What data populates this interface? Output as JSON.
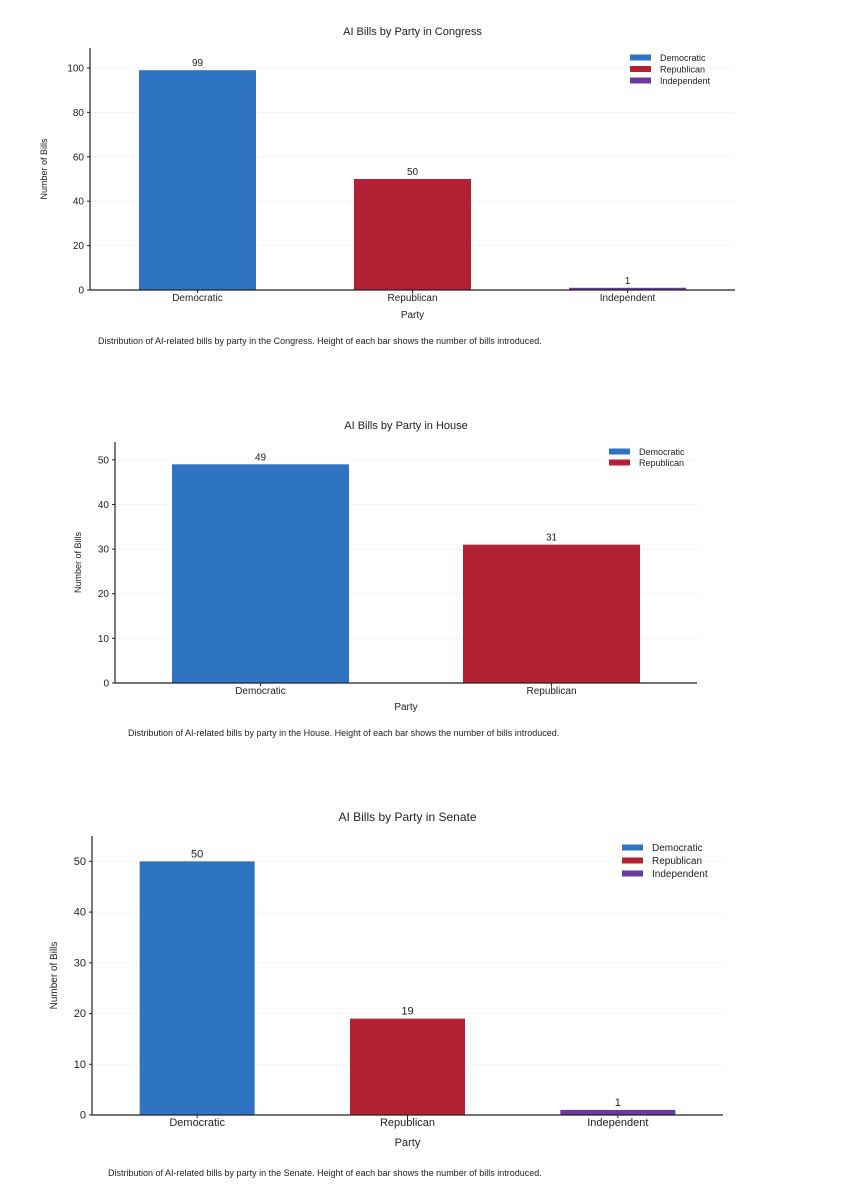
{
  "charts": [
    {
      "caption": "Distribution of AI-related bills by party in the Congress. Height of each bar shows the number of bills introduced.",
      "chart_data": {
        "type": "bar",
        "title": "AI Bills by Party in Congress",
        "xlabel": "Party",
        "ylabel": "Number of Bills",
        "categories": [
          "Democratic",
          "Republican",
          "Independent"
        ],
        "values": [
          99,
          50,
          1
        ],
        "colors": [
          "#2e74c3",
          "#b22234",
          "#6a3aa0"
        ],
        "ylim": [
          0,
          109
        ],
        "yticks": [
          "0",
          "20",
          "40",
          "60",
          "80",
          "100"
        ],
        "legend": [
          "Democratic",
          "Republican",
          "Independent"
        ],
        "legend_position": "top-right",
        "grid": true
      }
    },
    {
      "caption": "Distribution of AI-related bills by party in the House. Height of each bar shows the number of bills introduced.",
      "chart_data": {
        "type": "bar",
        "title": "AI Bills by Party in House",
        "xlabel": "Party",
        "ylabel": "Number of Bills",
        "categories": [
          "Democratic",
          "Republican"
        ],
        "values": [
          49,
          31
        ],
        "colors": [
          "#2e74c3",
          "#b22234"
        ],
        "ylim": [
          0,
          54
        ],
        "yticks": [
          "0",
          "10",
          "20",
          "30",
          "40",
          "50"
        ],
        "legend": [
          "Democratic",
          "Republican"
        ],
        "legend_position": "top-right",
        "grid": true
      }
    },
    {
      "caption": "Distribution of AI-related bills by party in the Senate. Height of each bar shows the number of bills introduced.",
      "chart_data": {
        "type": "bar",
        "title": "AI Bills by Party in Senate",
        "xlabel": "Party",
        "ylabel": "Number of Bills",
        "categories": [
          "Democratic",
          "Republican",
          "Independent"
        ],
        "values": [
          50,
          19,
          1
        ],
        "colors": [
          "#2e74c3",
          "#b22234",
          "#6a3aa0"
        ],
        "ylim": [
          0,
          55
        ],
        "yticks": [
          "0",
          "10",
          "20",
          "30",
          "40",
          "50"
        ],
        "legend": [
          "Democratic",
          "Republican",
          "Independent"
        ],
        "legend_position": "top-right",
        "grid": true
      }
    }
  ]
}
